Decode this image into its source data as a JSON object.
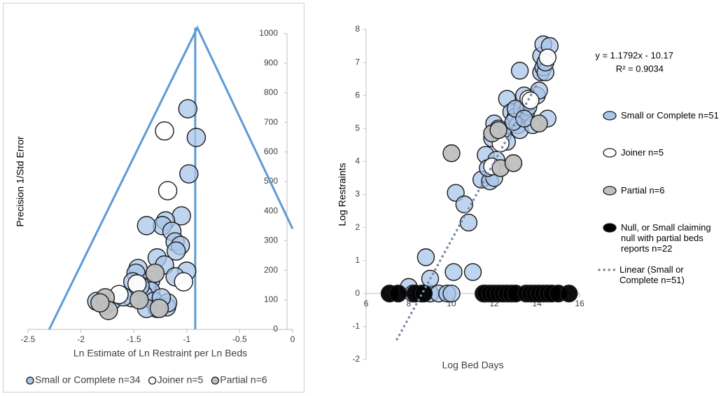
{
  "chart_data": [
    {
      "type": "scatter",
      "x_label": "Ln Estimate of Ln Restraint per Ln Beds",
      "y_label": "Precision 1/Std Error",
      "xlim": [
        -2.5,
        0
      ],
      "xticks": [
        -2.5,
        -2,
        -1.5,
        -1,
        -0.5,
        0
      ],
      "ylim": [
        0,
        1000
      ],
      "yticks": [
        0,
        100,
        200,
        300,
        400,
        500,
        600,
        700,
        800,
        900,
        1000
      ],
      "legend": "bottom",
      "lines": [
        {
          "color": "#5b9bd5",
          "x": [
            -2.3,
            -0.9,
            0
          ],
          "values": [
            0,
            1020,
            340
          ]
        },
        {
          "color": "#5b9bd5",
          "x": [
            -0.92,
            -0.92
          ],
          "values": [
            0,
            1020
          ]
        }
      ],
      "series": [
        {
          "name": "Small or Complete n=34",
          "color": "#a9c6ea",
          "x": [
            -0.99,
            -0.91,
            -0.98,
            -1.05,
            -1.2,
            -1.23,
            -1.38,
            -1.14,
            -1.11,
            -1.06,
            -1.1,
            -1.28,
            -1.21,
            -1.0,
            -1.11,
            -1.46,
            -1.48,
            -1.34,
            -1.38,
            -1.34,
            -1.41,
            -1.52,
            -1.31,
            -1.19,
            -1.18,
            -1.77,
            -1.71,
            -1.28,
            -1.38,
            -1.51,
            -1.44,
            -1.24,
            -1.85,
            -1.6
          ],
          "values": [
            746,
            649,
            526,
            384,
            367,
            351,
            351,
            332,
            296,
            284,
            265,
            242,
            218,
            197,
            178,
            206,
            190,
            166,
            142,
            130,
            118,
            107,
            95,
            76,
            90,
            83,
            95,
            71,
            71,
            161,
            147,
            107,
            95,
            110
          ]
        },
        {
          "name": "Joiner n=5",
          "color": "#ffffff",
          "x": [
            -1.21,
            -1.18,
            -1.64,
            -1.47,
            -1.03
          ],
          "values": [
            671,
            469,
            118,
            154,
            161
          ]
        },
        {
          "name": "Partial n=6",
          "color": "#bfbfbf",
          "x": [
            -1.3,
            -1.77,
            -1.45,
            -1.26,
            -1.74,
            -1.82
          ],
          "values": [
            190,
            107,
            100,
            71,
            64,
            90
          ]
        }
      ]
    },
    {
      "type": "scatter",
      "x_label": "Log Bed Days",
      "y_label": "Log Restraints",
      "xlim": [
        6,
        16
      ],
      "xticks": [
        6,
        8,
        10,
        12,
        14,
        16
      ],
      "ylim": [
        -2,
        8
      ],
      "yticks": [
        -2,
        -1,
        0,
        1,
        2,
        3,
        4,
        5,
        6,
        7,
        8
      ],
      "legend": "right",
      "annotations": [
        "y = 1.1792x - 10.17",
        "R² = 0.9034"
      ],
      "series": [
        {
          "name": "Small or Complete n=51",
          "color": "#a9c6ea",
          "x": [
            8.0,
            8.2,
            8.6,
            9.0,
            9.4,
            9.8,
            10.0,
            8.8,
            9.0,
            10.1,
            11.0,
            10.2,
            10.6,
            10.8,
            11.4,
            11.8,
            11.6,
            12.0,
            12.1,
            11.9,
            12.4,
            12.6,
            12.0,
            12.4,
            12.6,
            12.8,
            13.0,
            13.1,
            13.2,
            13.3,
            13.5,
            13.6,
            13.4,
            13.8,
            14.0,
            14.1,
            14.2,
            14.3,
            14.4,
            14.2,
            14.3,
            14.6,
            14.5,
            13.2,
            13.6,
            12.9,
            13.0,
            14.4,
            12.2,
            13.4,
            11.7
          ],
          "values": [
            0.2,
            0,
            0,
            0,
            0,
            0,
            0,
            1.1,
            0.45,
            0.65,
            0.65,
            3.05,
            2.7,
            2.15,
            3.45,
            3.4,
            4.2,
            3.5,
            4.05,
            4.7,
            4.8,
            4.6,
            5.15,
            4.95,
            5.9,
            5.5,
            5.35,
            5.1,
            4.95,
            5.6,
            5.5,
            5.8,
            6.0,
            5.1,
            6.0,
            6.15,
            6.7,
            6.85,
            6.7,
            7.2,
            7.55,
            7.5,
            5.3,
            6.75,
            5.65,
            5.2,
            5.6,
            7.0,
            5.0,
            5.3,
            3.8
          ]
        },
        {
          "name": "Joiner n=5",
          "color": "#ffffff",
          "x": [
            12.3,
            11.9,
            13.6,
            14.5,
            13.7
          ],
          "values": [
            4.55,
            3.85,
            5.9,
            7.15,
            5.85
          ]
        },
        {
          "name": "Partial n=6",
          "color": "#bfbfbf",
          "x": [
            10.0,
            11.9,
            12.2,
            12.3,
            12.9,
            14.1
          ],
          "values": [
            4.25,
            4.85,
            4.95,
            3.8,
            3.95,
            5.15
          ]
        },
        {
          "name": "Null, or Small claiming null with partial beds reports n=22",
          "color": "#000000",
          "x": [
            7.1,
            7.5,
            8.3,
            8.7,
            11.5,
            11.6,
            11.8,
            12.0,
            12.2,
            12.4,
            12.6,
            12.8,
            13.0,
            13.5,
            13.7,
            13.9,
            14.1,
            14.3,
            14.5,
            14.7,
            15.0,
            15.5
          ],
          "values": [
            0,
            0,
            0,
            0,
            0,
            0,
            0,
            0,
            0,
            0,
            0,
            0,
            0,
            0,
            0,
            0,
            0,
            0,
            0,
            0,
            0,
            0
          ]
        },
        {
          "name": "Linear (Small or Complete n=51)",
          "color": "#7f8aa6",
          "type": "line",
          "style": "dotted",
          "x": [
            7.45,
            14.05
          ],
          "values": [
            -1.385,
            6.4
          ]
        }
      ]
    }
  ]
}
